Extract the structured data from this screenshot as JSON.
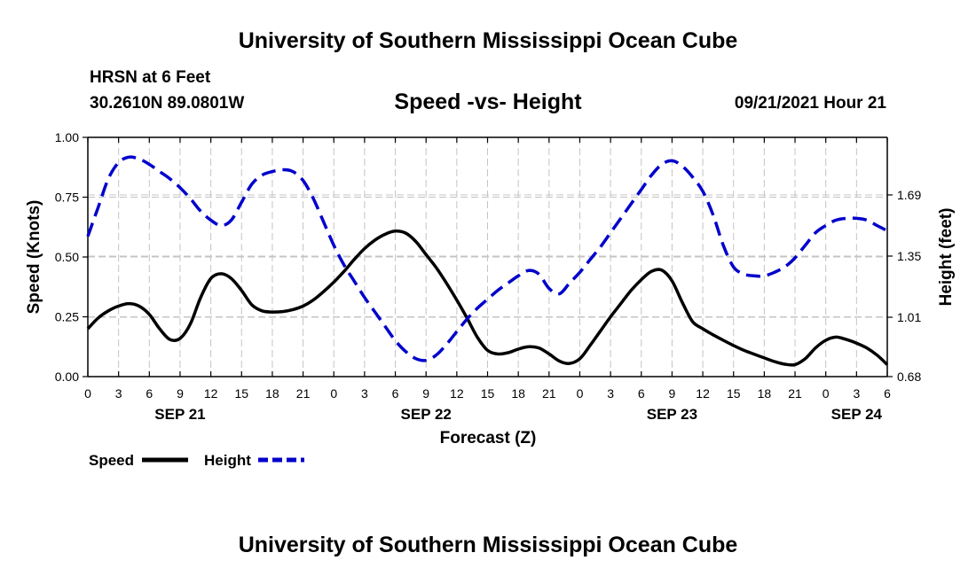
{
  "page": {
    "top_title": "University of Southern Mississippi Ocean Cube",
    "bottom_title": "University of Southern Mississippi Ocean Cube",
    "station": "HRSN at 6 Feet",
    "coords": "30.2610N  89.0801W",
    "chart_title": "Speed -vs- Height",
    "run": "09/21/2021 Hour 21"
  },
  "chart_data": {
    "type": "line",
    "title": "Speed -vs- Height",
    "xlabel": "Forecast (Z)",
    "ylabel": "Speed (Knots)",
    "y2label": "Height (feet)",
    "xlim": [
      0,
      78
    ],
    "ylim": [
      0,
      1
    ],
    "y2lim": [
      0.68,
      2.01
    ],
    "x_tick_values": [
      0,
      3,
      6,
      9,
      12,
      15,
      18,
      21,
      24,
      27,
      30,
      33,
      36,
      39,
      42,
      45,
      48,
      51,
      54,
      57,
      60,
      63,
      66,
      69,
      72,
      75,
      78
    ],
    "x_tick_labels": [
      "0",
      "3",
      "6",
      "9",
      "12",
      "15",
      "18",
      "21",
      "0",
      "3",
      "6",
      "9",
      "12",
      "15",
      "18",
      "21",
      "0",
      "3",
      "6",
      "9",
      "12",
      "15",
      "18",
      "21",
      "0",
      "3",
      "6"
    ],
    "date_labels": [
      {
        "x": 9,
        "label": "SEP 21"
      },
      {
        "x": 33,
        "label": "SEP 22"
      },
      {
        "x": 57,
        "label": "SEP 23"
      },
      {
        "x": 75,
        "label": "SEP 24"
      }
    ],
    "y_ticks": [
      {
        "value": 0,
        "label": "0.00"
      },
      {
        "value": 0.25,
        "label": "0.25"
      },
      {
        "value": 0.5,
        "label": "0.50"
      },
      {
        "value": 0.75,
        "label": "0.75"
      },
      {
        "value": 1,
        "label": "1.00"
      }
    ],
    "y2_ticks": [
      {
        "value": 0.68,
        "label": "0.68"
      },
      {
        "value": 1.01,
        "label": "1.01"
      },
      {
        "value": 1.35,
        "label": "1.35"
      },
      {
        "value": 1.69,
        "label": "1.69"
      }
    ],
    "series": [
      {
        "name": "Speed",
        "axis": "left",
        "color": "#000000",
        "style": "solid",
        "points": [
          [
            0,
            0.2
          ],
          [
            1,
            0.245
          ],
          [
            2,
            0.275
          ],
          [
            3,
            0.295
          ],
          [
            4,
            0.305
          ],
          [
            5,
            0.295
          ],
          [
            6,
            0.26
          ],
          [
            7,
            0.2
          ],
          [
            8,
            0.155
          ],
          [
            9,
            0.16
          ],
          [
            10,
            0.22
          ],
          [
            11,
            0.33
          ],
          [
            12,
            0.41
          ],
          [
            13,
            0.43
          ],
          [
            14,
            0.41
          ],
          [
            15,
            0.36
          ],
          [
            16,
            0.3
          ],
          [
            17,
            0.275
          ],
          [
            18,
            0.27
          ],
          [
            19,
            0.272
          ],
          [
            20,
            0.28
          ],
          [
            21,
            0.295
          ],
          [
            22,
            0.32
          ],
          [
            23,
            0.355
          ],
          [
            24,
            0.395
          ],
          [
            25,
            0.44
          ],
          [
            26,
            0.49
          ],
          [
            27,
            0.535
          ],
          [
            28,
            0.57
          ],
          [
            29,
            0.595
          ],
          [
            30,
            0.608
          ],
          [
            31,
            0.6
          ],
          [
            32,
            0.565
          ],
          [
            33,
            0.51
          ],
          [
            34,
            0.455
          ],
          [
            35,
            0.39
          ],
          [
            36,
            0.32
          ],
          [
            37,
            0.245
          ],
          [
            38,
            0.165
          ],
          [
            39,
            0.11
          ],
          [
            40,
            0.095
          ],
          [
            41,
            0.1
          ],
          [
            42,
            0.115
          ],
          [
            43,
            0.125
          ],
          [
            44,
            0.12
          ],
          [
            45,
            0.095
          ],
          [
            46,
            0.065
          ],
          [
            47,
            0.055
          ],
          [
            48,
            0.075
          ],
          [
            49,
            0.13
          ],
          [
            50,
            0.19
          ],
          [
            51,
            0.25
          ],
          [
            52,
            0.305
          ],
          [
            53,
            0.36
          ],
          [
            54,
            0.405
          ],
          [
            55,
            0.44
          ],
          [
            56,
            0.445
          ],
          [
            57,
            0.4
          ],
          [
            58,
            0.31
          ],
          [
            59,
            0.23
          ],
          [
            60,
            0.2
          ],
          [
            61,
            0.175
          ],
          [
            62,
            0.152
          ],
          [
            63,
            0.13
          ],
          [
            64,
            0.11
          ],
          [
            65,
            0.094
          ],
          [
            66,
            0.078
          ],
          [
            67,
            0.063
          ],
          [
            68,
            0.052
          ],
          [
            69,
            0.05
          ],
          [
            70,
            0.075
          ],
          [
            71,
            0.12
          ],
          [
            72,
            0.152
          ],
          [
            73,
            0.165
          ],
          [
            74,
            0.155
          ],
          [
            75,
            0.14
          ],
          [
            76,
            0.12
          ],
          [
            77,
            0.09
          ],
          [
            78,
            0.05
          ]
        ]
      },
      {
        "name": "Height",
        "axis": "right",
        "color": "#0000cc",
        "style": "dashed",
        "points": [
          [
            0,
            1.46
          ],
          [
            1,
            1.62
          ],
          [
            2,
            1.78
          ],
          [
            3,
            1.87
          ],
          [
            4,
            1.9
          ],
          [
            5,
            1.89
          ],
          [
            6,
            1.86
          ],
          [
            7,
            1.82
          ],
          [
            8,
            1.78
          ],
          [
            9,
            1.73
          ],
          [
            10,
            1.67
          ],
          [
            11,
            1.6
          ],
          [
            12,
            1.55
          ],
          [
            13,
            1.52
          ],
          [
            14,
            1.55
          ],
          [
            15,
            1.65
          ],
          [
            16,
            1.75
          ],
          [
            17,
            1.8
          ],
          [
            18,
            1.82
          ],
          [
            19,
            1.83
          ],
          [
            20,
            1.82
          ],
          [
            21,
            1.77
          ],
          [
            22,
            1.67
          ],
          [
            23,
            1.54
          ],
          [
            24,
            1.41
          ],
          [
            25,
            1.3
          ],
          [
            26,
            1.21
          ],
          [
            27,
            1.12
          ],
          [
            28,
            1.04
          ],
          [
            29,
            0.96
          ],
          [
            30,
            0.88
          ],
          [
            31,
            0.82
          ],
          [
            32,
            0.78
          ],
          [
            33,
            0.77
          ],
          [
            34,
            0.8
          ],
          [
            35,
            0.86
          ],
          [
            36,
            0.93
          ],
          [
            37,
            1.0
          ],
          [
            38,
            1.06
          ],
          [
            39,
            1.11
          ],
          [
            40,
            1.16
          ],
          [
            41,
            1.2
          ],
          [
            42,
            1.24
          ],
          [
            43,
            1.27
          ],
          [
            44,
            1.25
          ],
          [
            45,
            1.17
          ],
          [
            46,
            1.14
          ],
          [
            47,
            1.2
          ],
          [
            48,
            1.26
          ],
          [
            49,
            1.33
          ],
          [
            50,
            1.4
          ],
          [
            51,
            1.48
          ],
          [
            52,
            1.56
          ],
          [
            53,
            1.64
          ],
          [
            54,
            1.72
          ],
          [
            55,
            1.8
          ],
          [
            56,
            1.86
          ],
          [
            57,
            1.88
          ],
          [
            58,
            1.85
          ],
          [
            59,
            1.79
          ],
          [
            60,
            1.71
          ],
          [
            61,
            1.58
          ],
          [
            62,
            1.41
          ],
          [
            63,
            1.29
          ],
          [
            64,
            1.25
          ],
          [
            65,
            1.24
          ],
          [
            66,
            1.24
          ],
          [
            67,
            1.26
          ],
          [
            68,
            1.29
          ],
          [
            69,
            1.34
          ],
          [
            70,
            1.41
          ],
          [
            71,
            1.48
          ],
          [
            72,
            1.52
          ],
          [
            73,
            1.55
          ],
          [
            74,
            1.56
          ],
          [
            75,
            1.56
          ],
          [
            76,
            1.55
          ],
          [
            77,
            1.52
          ],
          [
            78,
            1.49
          ]
        ]
      }
    ],
    "legend": [
      {
        "label": "Speed",
        "color": "#000000",
        "style": "solid"
      },
      {
        "label": "Height",
        "color": "#0000cc",
        "style": "dashed"
      }
    ]
  }
}
